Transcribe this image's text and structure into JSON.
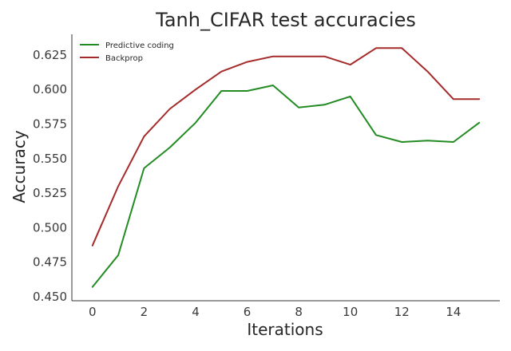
{
  "chart_data": {
    "type": "line",
    "title": "Tanh_CIFAR test accuracies",
    "xlabel": "Iterations",
    "ylabel": "Accuracy",
    "xlim": [
      -0.8,
      15.8
    ],
    "ylim": [
      0.447,
      0.64
    ],
    "xticks": [
      0,
      2,
      4,
      6,
      8,
      10,
      12,
      14
    ],
    "yticks": [
      0.45,
      0.475,
      0.5,
      0.525,
      0.55,
      0.575,
      0.6,
      0.625
    ],
    "ytick_labels": [
      "0.450",
      "0.475",
      "0.500",
      "0.525",
      "0.550",
      "0.575",
      "0.600",
      "0.625"
    ],
    "grid": false,
    "legend_position": "top-left",
    "x": [
      0,
      1,
      2,
      3,
      4,
      5,
      6,
      7,
      8,
      9,
      10,
      11,
      12,
      13,
      14,
      15
    ],
    "series": [
      {
        "name": "Predictive coding",
        "color": "#228b22",
        "values": [
          0.457,
          0.48,
          0.543,
          0.558,
          0.576,
          0.599,
          0.599,
          0.603,
          0.587,
          0.589,
          0.595,
          0.567,
          0.562,
          0.563,
          0.562,
          0.576
        ]
      },
      {
        "name": "Backprop",
        "color": "#a52a2a",
        "values": [
          0.487,
          0.53,
          0.566,
          0.586,
          0.6,
          0.613,
          0.62,
          0.624,
          0.624,
          0.624,
          0.618,
          0.63,
          0.63,
          0.613,
          0.593,
          0.593
        ]
      }
    ]
  }
}
